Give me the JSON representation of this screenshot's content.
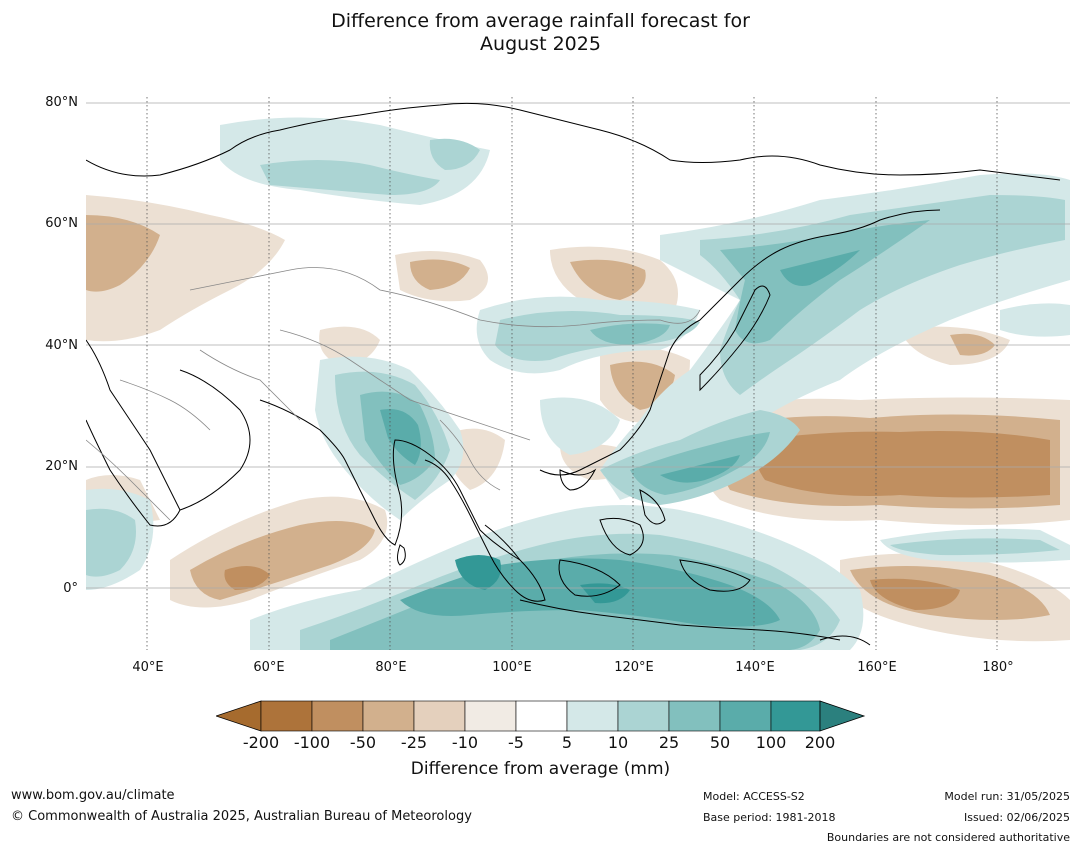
{
  "title_line1": "Difference from average rainfall forecast for",
  "title_line2": "August 2025",
  "lat_labels": [
    "80°N",
    "60°N",
    "40°N",
    "20°N",
    "0°"
  ],
  "lon_labels": [
    "40°E",
    "60°E",
    "80°E",
    "100°E",
    "120°E",
    "140°E",
    "160°E",
    "180°"
  ],
  "colorbar": {
    "ticks": [
      "-200",
      "-100",
      "-50",
      "-25",
      "-10",
      "-5",
      "5",
      "10",
      "25",
      "50",
      "100",
      "200"
    ],
    "colors": [
      "#a66b2e",
      "#ad733a",
      "#c08f60",
      "#d2b08d",
      "#e4d0bd",
      "#f1ebe4",
      "#ffffff",
      "#d4e8e8",
      "#abd4d3",
      "#82c0be",
      "#5aacaa",
      "#339896",
      "#2b807e"
    ],
    "label": "Difference from average (mm)"
  },
  "footer": {
    "website": "www.bom.gov.au/climate",
    "copyright": "© Commonwealth of Australia 2025, Australian Bureau of Meteorology",
    "model": "Model: ACCESS-S2",
    "base_period": "Base period: 1981-2018",
    "model_run": "Model run: 31/05/2025",
    "issued": "Issued: 02/06/2025",
    "disclaimer": "Boundaries are not considered authoritative"
  }
}
